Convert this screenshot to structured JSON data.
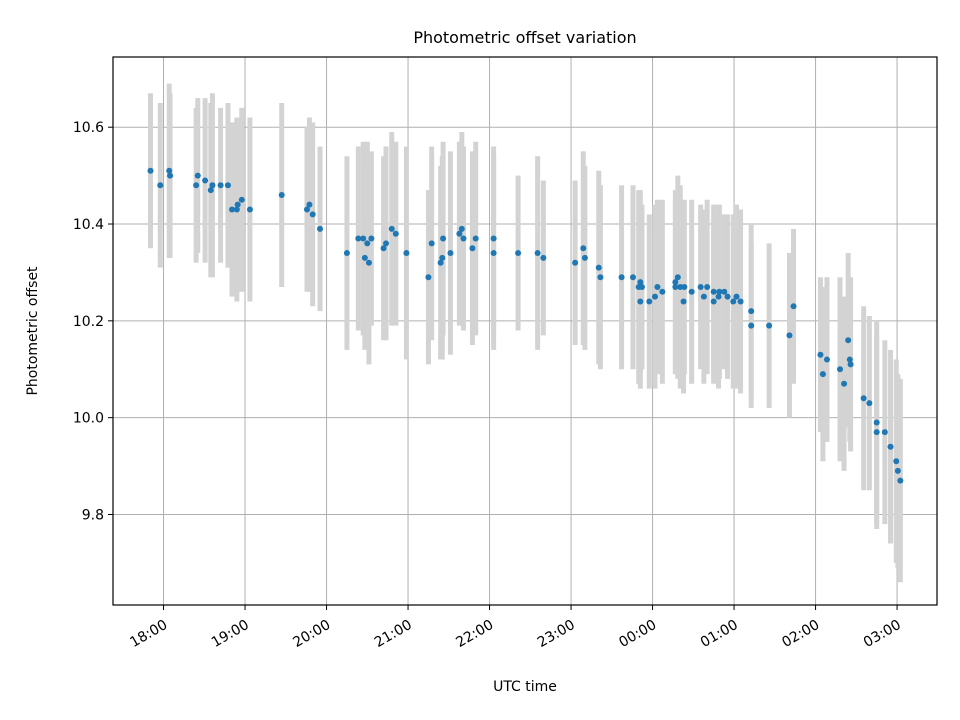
{
  "chart_data": {
    "type": "scatter",
    "title": "Photometric offset variation",
    "xlabel": "UTC time",
    "ylabel": "Photometric offset",
    "x_unit": "UTC hour of night (values above 24 are after midnight)",
    "xlim": [
      17.38,
      27.49
    ],
    "ylim": [
      9.613,
      10.745
    ],
    "grid": true,
    "x_ticks": [
      {
        "value": 18,
        "label": "18:00"
      },
      {
        "value": 19,
        "label": "19:00"
      },
      {
        "value": 20,
        "label": "20:00"
      },
      {
        "value": 21,
        "label": "21:00"
      },
      {
        "value": 22,
        "label": "22:00"
      },
      {
        "value": 23,
        "label": "23:00"
      },
      {
        "value": 24,
        "label": "00:00"
      },
      {
        "value": 25,
        "label": "01:00"
      },
      {
        "value": 26,
        "label": "02:00"
      },
      {
        "value": 27,
        "label": "03:00"
      }
    ],
    "y_ticks": [
      {
        "value": 9.8,
        "label": "9.8"
      },
      {
        "value": 10.0,
        "label": "10.0"
      },
      {
        "value": 10.2,
        "label": "10.2"
      },
      {
        "value": 10.4,
        "label": "10.4"
      },
      {
        "value": 10.6,
        "label": "10.6"
      }
    ],
    "colors": {
      "point": "#1f77b4",
      "errorbar": "#d3d3d3",
      "grid": "#b0b0b0",
      "axes": "#000000"
    },
    "series": [
      {
        "x": [
          17.84,
          17.96,
          18.07,
          18.08,
          18.4,
          18.42,
          18.51,
          18.58,
          18.6,
          18.7,
          18.79,
          18.84,
          18.9,
          18.91,
          18.96,
          19.06,
          19.45,
          19.76,
          19.79,
          19.83,
          19.92,
          20.25,
          20.39,
          20.45,
          20.47,
          20.5,
          20.52,
          20.55,
          20.7,
          20.73,
          20.8,
          20.85,
          20.98,
          21.25,
          21.29,
          21.4,
          21.42,
          21.43,
          21.52,
          21.63,
          21.66,
          21.68,
          21.79,
          21.83,
          22.05,
          22.05,
          22.35,
          22.59,
          22.66,
          23.05,
          23.15,
          23.17,
          23.34,
          23.36,
          23.62,
          23.76,
          23.83,
          23.85,
          23.85,
          23.87,
          23.96,
          24.03,
          24.06,
          24.12,
          24.28,
          24.28,
          24.31,
          24.34,
          24.38,
          24.39,
          24.48,
          24.59,
          24.63,
          24.67,
          24.75,
          24.75,
          24.81,
          24.82,
          24.88,
          24.92,
          24.99,
          25.03,
          25.08,
          25.21,
          25.21,
          25.43,
          25.68,
          25.73,
          26.06,
          26.09,
          26.14,
          26.3,
          26.35,
          26.4,
          26.42,
          26.43,
          26.59,
          26.66,
          26.75,
          26.75,
          26.85,
          26.92,
          26.99,
          27.01,
          27.04
        ],
        "y": [
          10.51,
          10.48,
          10.51,
          10.5,
          10.48,
          10.5,
          10.49,
          10.47,
          10.48,
          10.48,
          10.48,
          10.43,
          10.43,
          10.44,
          10.45,
          10.43,
          10.46,
          10.43,
          10.44,
          10.42,
          10.39,
          10.34,
          10.37,
          10.37,
          10.33,
          10.36,
          10.32,
          10.37,
          10.35,
          10.36,
          10.39,
          10.38,
          10.34,
          10.29,
          10.36,
          10.32,
          10.33,
          10.37,
          10.34,
          10.38,
          10.39,
          10.37,
          10.35,
          10.37,
          10.37,
          10.34,
          10.34,
          10.34,
          10.33,
          10.32,
          10.35,
          10.33,
          10.31,
          10.29,
          10.29,
          10.29,
          10.27,
          10.24,
          10.28,
          10.27,
          10.24,
          10.25,
          10.27,
          10.26,
          10.27,
          10.28,
          10.29,
          10.27,
          10.24,
          10.27,
          10.26,
          10.27,
          10.25,
          10.27,
          10.24,
          10.26,
          10.25,
          10.26,
          10.26,
          10.25,
          10.24,
          10.25,
          10.24,
          10.22,
          10.19,
          10.19,
          10.17,
          10.23,
          10.13,
          10.09,
          10.12,
          10.1,
          10.07,
          10.16,
          10.12,
          10.11,
          10.04,
          10.03,
          9.99,
          9.97,
          9.97,
          9.94,
          9.91,
          9.89,
          9.87
        ],
        "yerr": [
          0.16,
          0.17,
          0.18,
          0.17,
          0.16,
          0.16,
          0.17,
          0.18,
          0.19,
          0.16,
          0.17,
          0.18,
          0.19,
          0.18,
          0.19,
          0.19,
          0.19,
          0.17,
          0.18,
          0.19,
          0.17,
          0.2,
          0.19,
          0.2,
          0.19,
          0.21,
          0.21,
          0.18,
          0.19,
          0.2,
          0.2,
          0.19,
          0.22,
          0.18,
          0.2,
          0.2,
          0.21,
          0.2,
          0.21,
          0.19,
          0.2,
          0.19,
          0.2,
          0.2,
          0.19,
          0.2,
          0.16,
          0.2,
          0.16,
          0.17,
          0.2,
          0.19,
          0.2,
          0.19,
          0.19,
          0.19,
          0.2,
          0.18,
          0.19,
          0.17,
          0.18,
          0.19,
          0.18,
          0.19,
          0.18,
          0.19,
          0.21,
          0.21,
          0.19,
          0.18,
          0.19,
          0.17,
          0.18,
          0.18,
          0.17,
          0.18,
          0.19,
          0.18,
          0.16,
          0.17,
          0.18,
          0.19,
          0.19,
          0.18,
          0.17,
          0.17,
          0.17,
          0.16,
          0.16,
          0.18,
          0.17,
          0.19,
          0.18,
          0.18,
          0.17,
          0.18,
          0.19,
          0.18,
          0.21,
          0.2,
          0.19,
          0.2,
          0.21,
          0.2,
          0.21
        ]
      }
    ]
  }
}
